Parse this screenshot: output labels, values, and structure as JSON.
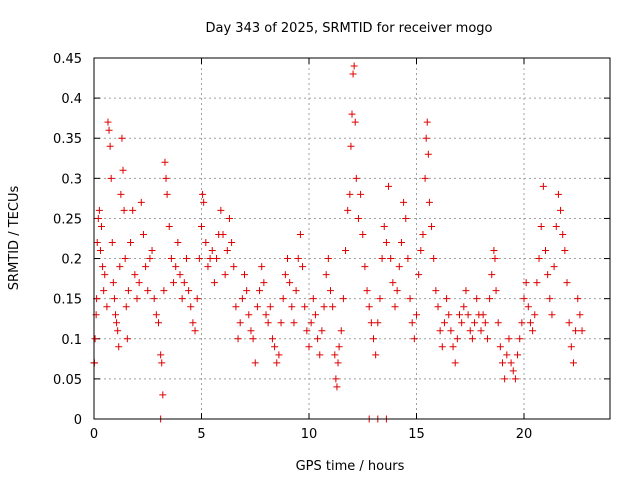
{
  "chart_data": {
    "type": "scatter",
    "title": "Day 343 of 2025, SRMTID for receiver mogo",
    "xlabel": "GPS time / hours",
    "ylabel": "SRMTID / TECUs",
    "xlim": [
      0,
      24
    ],
    "ylim": [
      0,
      0.45
    ],
    "grid": true,
    "marker": "+",
    "color": "#e00000",
    "x_ticks": [
      0,
      5,
      10,
      15,
      20
    ],
    "x_tick_labels": [
      "0",
      "5",
      "10",
      "15",
      "20"
    ],
    "y_ticks": [
      0,
      0.05,
      0.1,
      0.15,
      0.2,
      0.25,
      0.3,
      0.35,
      0.4,
      0.45
    ],
    "y_tick_labels": [
      "0",
      "0.05",
      "0.1",
      "0.15",
      "0.2",
      "0.25",
      "0.3",
      "0.35",
      "0.4",
      "0.45"
    ],
    "series": [
      {
        "name": "SRMTID",
        "points": [
          [
            0.0,
            0.07
          ],
          [
            0.05,
            0.1
          ],
          [
            0.1,
            0.13
          ],
          [
            0.12,
            0.15
          ],
          [
            0.15,
            0.22
          ],
          [
            0.2,
            0.25
          ],
          [
            0.25,
            0.26
          ],
          [
            0.3,
            0.21
          ],
          [
            0.35,
            0.24
          ],
          [
            0.4,
            0.19
          ],
          [
            0.45,
            0.16
          ],
          [
            0.5,
            0.18
          ],
          [
            0.6,
            0.14
          ],
          [
            0.65,
            0.37
          ],
          [
            0.7,
            0.36
          ],
          [
            0.75,
            0.34
          ],
          [
            0.8,
            0.3
          ],
          [
            0.85,
            0.22
          ],
          [
            0.9,
            0.17
          ],
          [
            0.95,
            0.15
          ],
          [
            1.0,
            0.13
          ],
          [
            1.05,
            0.12
          ],
          [
            1.1,
            0.11
          ],
          [
            1.15,
            0.09
          ],
          [
            1.2,
            0.19
          ],
          [
            1.25,
            0.28
          ],
          [
            1.3,
            0.35
          ],
          [
            1.35,
            0.31
          ],
          [
            1.4,
            0.26
          ],
          [
            1.45,
            0.2
          ],
          [
            1.5,
            0.14
          ],
          [
            1.55,
            0.1
          ],
          [
            1.6,
            0.16
          ],
          [
            1.7,
            0.22
          ],
          [
            1.8,
            0.26
          ],
          [
            1.9,
            0.18
          ],
          [
            2.0,
            0.15
          ],
          [
            2.1,
            0.17
          ],
          [
            2.2,
            0.27
          ],
          [
            2.3,
            0.23
          ],
          [
            2.4,
            0.19
          ],
          [
            2.5,
            0.16
          ],
          [
            2.6,
            0.2
          ],
          [
            2.7,
            0.21
          ],
          [
            2.8,
            0.15
          ],
          [
            2.9,
            0.13
          ],
          [
            3.0,
            0.12
          ],
          [
            3.1,
            0.08
          ],
          [
            3.15,
            0.07
          ],
          [
            3.2,
            0.03
          ],
          [
            3.25,
            0.16
          ],
          [
            3.3,
            0.32
          ],
          [
            3.35,
            0.3
          ],
          [
            3.4,
            0.28
          ],
          [
            3.5,
            0.24
          ],
          [
            3.6,
            0.2
          ],
          [
            3.7,
            0.17
          ],
          [
            3.8,
            0.19
          ],
          [
            3.9,
            0.22
          ],
          [
            4.0,
            0.18
          ],
          [
            4.1,
            0.15
          ],
          [
            4.2,
            0.17
          ],
          [
            4.3,
            0.2
          ],
          [
            4.4,
            0.16
          ],
          [
            4.5,
            0.14
          ],
          [
            4.6,
            0.12
          ],
          [
            4.7,
            0.11
          ],
          [
            4.8,
            0.15
          ],
          [
            4.9,
            0.2
          ],
          [
            5.0,
            0.24
          ],
          [
            5.05,
            0.28
          ],
          [
            5.1,
            0.27
          ],
          [
            5.2,
            0.22
          ],
          [
            5.3,
            0.19
          ],
          [
            5.4,
            0.2
          ],
          [
            5.5,
            0.21
          ],
          [
            5.6,
            0.17
          ],
          [
            5.7,
            0.2
          ],
          [
            5.8,
            0.23
          ],
          [
            5.9,
            0.26
          ],
          [
            6.0,
            0.23
          ],
          [
            6.1,
            0.18
          ],
          [
            6.2,
            0.21
          ],
          [
            6.3,
            0.25
          ],
          [
            6.4,
            0.22
          ],
          [
            6.5,
            0.19
          ],
          [
            6.6,
            0.14
          ],
          [
            6.7,
            0.1
          ],
          [
            6.8,
            0.12
          ],
          [
            6.9,
            0.15
          ],
          [
            7.0,
            0.18
          ],
          [
            7.1,
            0.16
          ],
          [
            7.2,
            0.13
          ],
          [
            7.3,
            0.11
          ],
          [
            7.4,
            0.1
          ],
          [
            7.5,
            0.07
          ],
          [
            7.6,
            0.14
          ],
          [
            7.7,
            0.16
          ],
          [
            7.8,
            0.19
          ],
          [
            7.9,
            0.17
          ],
          [
            8.0,
            0.13
          ],
          [
            8.1,
            0.12
          ],
          [
            8.2,
            0.14
          ],
          [
            8.3,
            0.1
          ],
          [
            8.4,
            0.09
          ],
          [
            8.5,
            0.07
          ],
          [
            8.6,
            0.08
          ],
          [
            8.7,
            0.12
          ],
          [
            8.8,
            0.15
          ],
          [
            8.9,
            0.18
          ],
          [
            9.0,
            0.2
          ],
          [
            9.1,
            0.17
          ],
          [
            9.2,
            0.14
          ],
          [
            9.3,
            0.12
          ],
          [
            9.4,
            0.16
          ],
          [
            9.5,
            0.2
          ],
          [
            9.6,
            0.23
          ],
          [
            9.7,
            0.19
          ],
          [
            9.8,
            0.14
          ],
          [
            9.9,
            0.11
          ],
          [
            10.0,
            0.09
          ],
          [
            10.1,
            0.12
          ],
          [
            10.2,
            0.15
          ],
          [
            10.3,
            0.13
          ],
          [
            10.4,
            0.1
          ],
          [
            10.5,
            0.08
          ],
          [
            10.6,
            0.11
          ],
          [
            10.7,
            0.14
          ],
          [
            10.8,
            0.18
          ],
          [
            10.9,
            0.2
          ],
          [
            11.0,
            0.16
          ],
          [
            11.1,
            0.14
          ],
          [
            11.2,
            0.08
          ],
          [
            11.25,
            0.05
          ],
          [
            11.3,
            0.04
          ],
          [
            11.35,
            0.07
          ],
          [
            11.4,
            0.09
          ],
          [
            11.5,
            0.11
          ],
          [
            11.6,
            0.15
          ],
          [
            11.7,
            0.21
          ],
          [
            11.8,
            0.26
          ],
          [
            11.9,
            0.28
          ],
          [
            11.95,
            0.34
          ],
          [
            12.0,
            0.38
          ],
          [
            12.05,
            0.43
          ],
          [
            12.1,
            0.44
          ],
          [
            12.15,
            0.37
          ],
          [
            12.2,
            0.3
          ],
          [
            12.3,
            0.25
          ],
          [
            12.4,
            0.28
          ],
          [
            12.5,
            0.23
          ],
          [
            12.6,
            0.19
          ],
          [
            12.7,
            0.16
          ],
          [
            12.8,
            0.14
          ],
          [
            12.9,
            0.12
          ],
          [
            13.0,
            0.1
          ],
          [
            13.1,
            0.08
          ],
          [
            13.2,
            0.12
          ],
          [
            13.3,
            0.15
          ],
          [
            13.4,
            0.2
          ],
          [
            13.5,
            0.24
          ],
          [
            13.6,
            0.22
          ],
          [
            13.7,
            0.29
          ],
          [
            13.8,
            0.2
          ],
          [
            13.9,
            0.17
          ],
          [
            14.0,
            0.14
          ],
          [
            14.1,
            0.16
          ],
          [
            14.2,
            0.19
          ],
          [
            14.3,
            0.22
          ],
          [
            14.4,
            0.27
          ],
          [
            14.5,
            0.25
          ],
          [
            14.6,
            0.2
          ],
          [
            14.7,
            0.15
          ],
          [
            14.8,
            0.12
          ],
          [
            14.9,
            0.1
          ],
          [
            15.0,
            0.13
          ],
          [
            15.1,
            0.18
          ],
          [
            15.2,
            0.21
          ],
          [
            15.3,
            0.23
          ],
          [
            15.4,
            0.3
          ],
          [
            15.45,
            0.35
          ],
          [
            15.5,
            0.37
          ],
          [
            15.55,
            0.33
          ],
          [
            15.6,
            0.27
          ],
          [
            15.7,
            0.24
          ],
          [
            15.8,
            0.2
          ],
          [
            15.9,
            0.16
          ],
          [
            16.0,
            0.14
          ],
          [
            16.1,
            0.11
          ],
          [
            16.2,
            0.09
          ],
          [
            16.3,
            0.12
          ],
          [
            16.4,
            0.15
          ],
          [
            16.5,
            0.13
          ],
          [
            16.6,
            0.11
          ],
          [
            16.7,
            0.09
          ],
          [
            16.8,
            0.07
          ],
          [
            16.9,
            0.1
          ],
          [
            17.0,
            0.13
          ],
          [
            17.1,
            0.12
          ],
          [
            17.2,
            0.14
          ],
          [
            17.3,
            0.16
          ],
          [
            17.4,
            0.13
          ],
          [
            17.5,
            0.11
          ],
          [
            17.6,
            0.1
          ],
          [
            17.7,
            0.12
          ],
          [
            17.8,
            0.15
          ],
          [
            17.9,
            0.13
          ],
          [
            18.0,
            0.11
          ],
          [
            18.1,
            0.13
          ],
          [
            18.2,
            0.12
          ],
          [
            18.3,
            0.1
          ],
          [
            18.4,
            0.15
          ],
          [
            18.5,
            0.18
          ],
          [
            18.6,
            0.21
          ],
          [
            18.65,
            0.2
          ],
          [
            18.7,
            0.16
          ],
          [
            18.8,
            0.12
          ],
          [
            18.9,
            0.09
          ],
          [
            19.0,
            0.07
          ],
          [
            19.1,
            0.05
          ],
          [
            19.2,
            0.08
          ],
          [
            19.3,
            0.1
          ],
          [
            19.4,
            0.07
          ],
          [
            19.5,
            0.06
          ],
          [
            19.6,
            0.05
          ],
          [
            19.7,
            0.08
          ],
          [
            19.8,
            0.1
          ],
          [
            19.9,
            0.12
          ],
          [
            20.0,
            0.15
          ],
          [
            20.1,
            0.17
          ],
          [
            20.2,
            0.14
          ],
          [
            20.3,
            0.12
          ],
          [
            20.4,
            0.11
          ],
          [
            20.5,
            0.13
          ],
          [
            20.6,
            0.17
          ],
          [
            20.7,
            0.2
          ],
          [
            20.8,
            0.24
          ],
          [
            20.9,
            0.29
          ],
          [
            21.0,
            0.21
          ],
          [
            21.1,
            0.18
          ],
          [
            21.2,
            0.15
          ],
          [
            21.3,
            0.13
          ],
          [
            21.4,
            0.19
          ],
          [
            21.5,
            0.24
          ],
          [
            21.6,
            0.28
          ],
          [
            21.7,
            0.26
          ],
          [
            21.8,
            0.23
          ],
          [
            21.9,
            0.21
          ],
          [
            22.0,
            0.17
          ],
          [
            22.1,
            0.12
          ],
          [
            22.2,
            0.09
          ],
          [
            22.3,
            0.07
          ],
          [
            22.4,
            0.11
          ],
          [
            22.5,
            0.15
          ],
          [
            22.6,
            0.13
          ],
          [
            22.7,
            0.11
          ],
          [
            12.8,
            0.0
          ],
          [
            13.2,
            0.0
          ],
          [
            13.6,
            0.0
          ],
          [
            3.1,
            0.0
          ],
          [
            0.02,
            0.07
          ]
        ]
      }
    ]
  }
}
